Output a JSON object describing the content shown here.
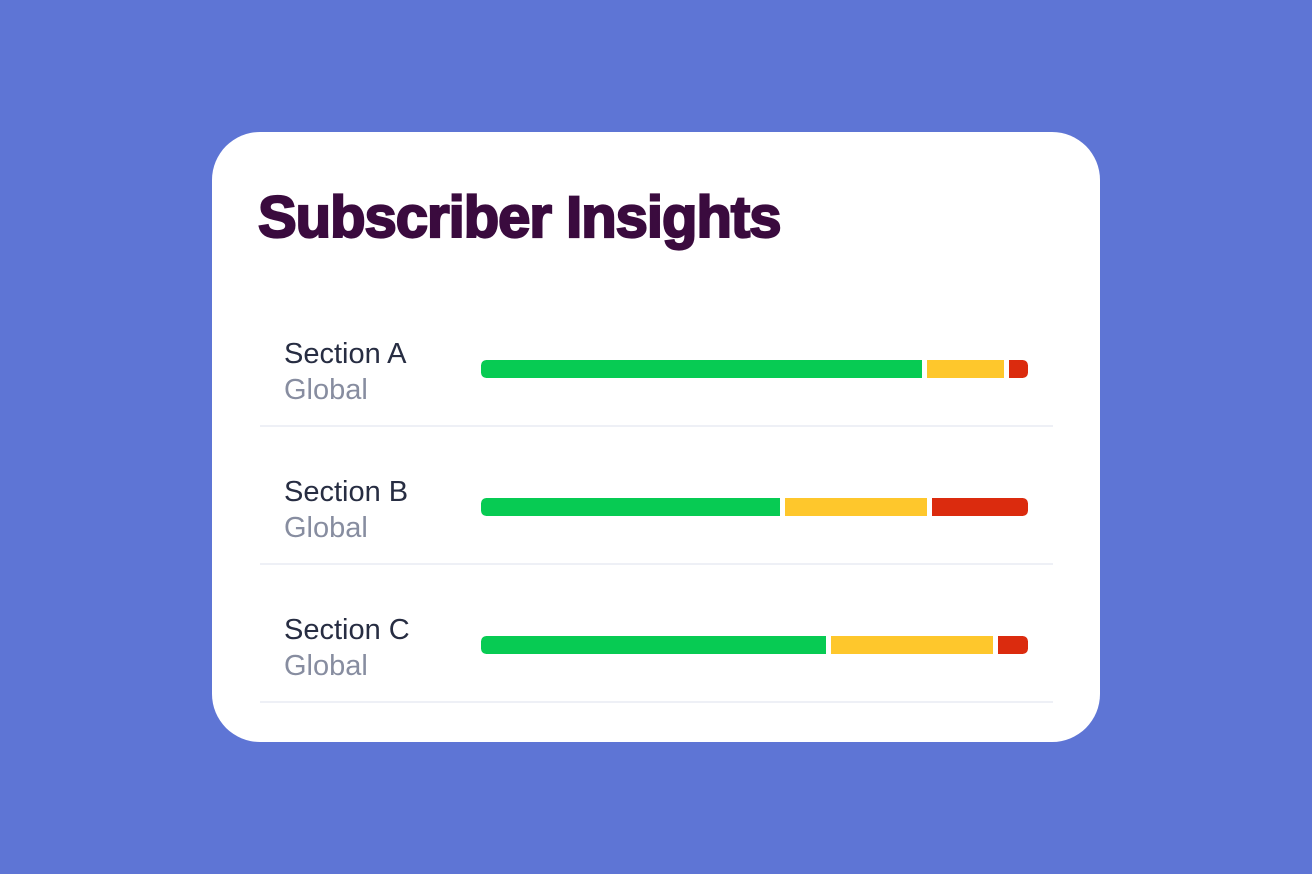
{
  "colors": {
    "background": "#5E75D5",
    "card": "#FFFFFF",
    "title": "#3A0B3E",
    "section_label": "#272D42",
    "sublabel": "#878DA0",
    "divider": "#EEF0F6",
    "segment_green": "#07CB53",
    "segment_yellow": "#FEC72C",
    "segment_red": "#DB2B0E"
  },
  "card": {
    "title": "Subscriber Insights",
    "rows": [
      {
        "label": "Section A",
        "sublabel": "Global"
      },
      {
        "label": "Section B",
        "sublabel": "Global"
      },
      {
        "label": "Section C",
        "sublabel": "Global"
      }
    ]
  },
  "chart_data": {
    "type": "bar",
    "stacked": true,
    "orientation": "horizontal",
    "title": "Subscriber Insights",
    "categories": [
      "Section A",
      "Section B",
      "Section C"
    ],
    "category_sublabels": [
      "Global",
      "Global",
      "Global"
    ],
    "series": [
      {
        "name": "green",
        "color": "#07CB53",
        "values": [
          80.6,
          54.7,
          63.3
        ]
      },
      {
        "name": "yellow",
        "color": "#FEC72C",
        "values": [
          14.1,
          26.0,
          29.6
        ]
      },
      {
        "name": "red",
        "color": "#DB2B0E",
        "values": [
          3.5,
          17.6,
          5.5
        ]
      }
    ],
    "units": "percent of bar width (estimated from pixels)",
    "xlim": [
      0,
      100
    ],
    "grid": false,
    "legend": false,
    "axis_labels_visible": false
  }
}
